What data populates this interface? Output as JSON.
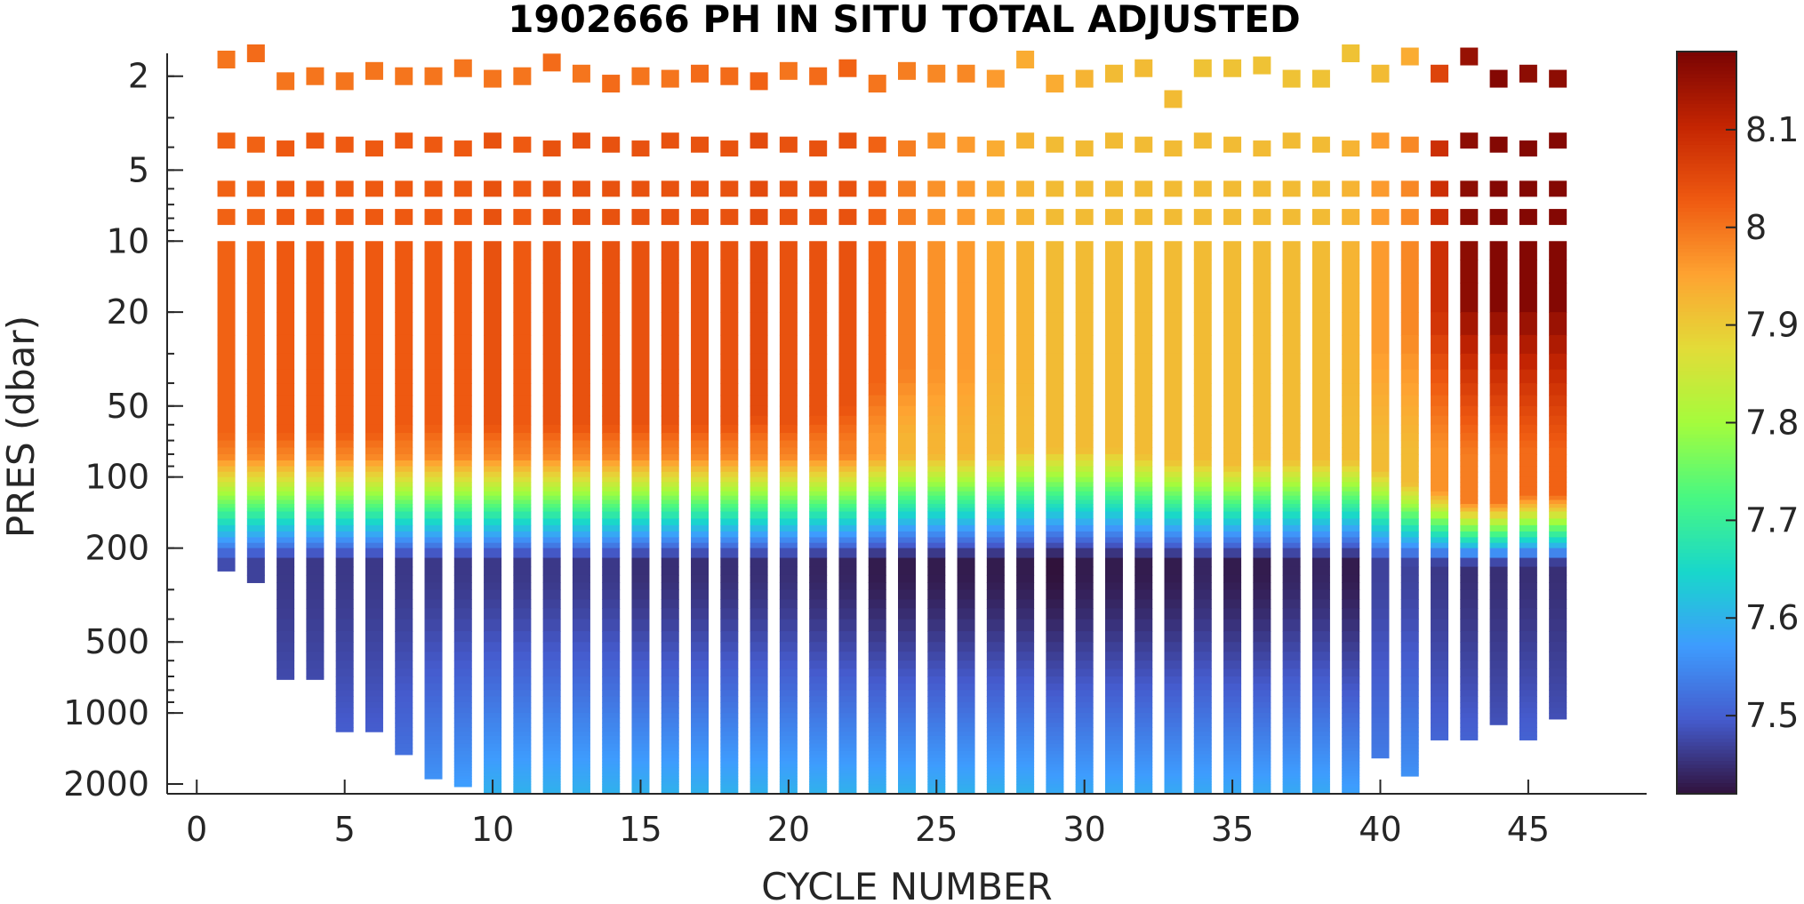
{
  "chart_data": {
    "type": "heatmap",
    "title": "1902666  PH IN SITU TOTAL ADJUSTED",
    "xlabel": "CYCLE NUMBER",
    "ylabel": "PRES (dbar)",
    "xlim": [
      -1,
      49
    ],
    "xticks": [
      0,
      5,
      10,
      15,
      20,
      25,
      30,
      35,
      40,
      45
    ],
    "ylim": [
      2200,
      1.6
    ],
    "yscale": "log",
    "yreversed": true,
    "yticks": [
      2,
      5,
      10,
      20,
      50,
      100,
      200,
      500,
      1000,
      2000
    ],
    "colorbar": {
      "ticks": [
        7.5,
        7.6,
        7.7,
        7.8,
        7.9,
        8,
        8.1
      ],
      "tick_labels": [
        "7.5",
        "7.6",
        "7.7",
        "7.8",
        "7.9",
        "8",
        "8.1"
      ],
      "range": [
        7.42,
        8.18
      ],
      "colormap": "turbo"
    },
    "cycles": [
      1,
      2,
      3,
      4,
      5,
      6,
      7,
      8,
      9,
      10,
      11,
      12,
      13,
      14,
      15,
      16,
      17,
      18,
      19,
      20,
      21,
      22,
      23,
      24,
      25,
      26,
      27,
      28,
      29,
      30,
      31,
      32,
      33,
      34,
      35,
      36,
      37,
      38,
      39,
      40,
      41,
      42,
      43,
      44,
      45,
      46
    ],
    "max_pressure": [
      250,
      280,
      720,
      720,
      1200,
      1200,
      1500,
      1900,
      2050,
      2200,
      2200,
      2200,
      2200,
      2200,
      2200,
      2200,
      2200,
      2200,
      2200,
      2200,
      2200,
      2200,
      2200,
      2200,
      2200,
      2200,
      2200,
      2200,
      2200,
      2200,
      2200,
      2200,
      2200,
      2200,
      2200,
      2200,
      2200,
      2200,
      2200,
      1550,
      1850,
      1300,
      1300,
      1120,
      1300,
      1060
    ],
    "surface_ph": [
      8.0,
      8.01,
      8.0,
      8.0,
      8.0,
      8.0,
      8.0,
      8.0,
      8.0,
      8.0,
      8.0,
      8.01,
      8.0,
      8.01,
      8.0,
      8.0,
      8.01,
      8.01,
      8.02,
      8.0,
      8.01,
      8.02,
      8.0,
      7.99,
      7.98,
      7.98,
      7.96,
      7.94,
      7.94,
      7.93,
      7.92,
      7.92,
      7.92,
      7.91,
      7.91,
      7.91,
      7.91,
      7.91,
      7.91,
      7.92,
      7.94,
      8.06,
      8.15,
      8.17,
      8.16,
      8.16
    ],
    "surface_pres": [
      1.7,
      1.6,
      2.1,
      2.0,
      2.1,
      1.9,
      2.0,
      2.0,
      1.85,
      2.05,
      2.0,
      1.75,
      1.95,
      2.15,
      2.0,
      2.05,
      1.95,
      2.0,
      2.1,
      1.9,
      2.0,
      1.85,
      2.15,
      1.9,
      1.95,
      1.95,
      2.05,
      1.7,
      2.15,
      2.05,
      1.95,
      1.85,
      2.5,
      1.85,
      1.85,
      1.8,
      2.05,
      2.05,
      1.6,
      1.95,
      1.65,
      1.95,
      1.65,
      2.05,
      1.95,
      2.05
    ],
    "mixed_ph": [
      8.02,
      8.02,
      8.03,
      8.03,
      8.03,
      8.03,
      8.03,
      8.03,
      8.03,
      8.04,
      8.03,
      8.04,
      8.04,
      8.04,
      8.04,
      8.04,
      8.04,
      8.04,
      8.05,
      8.04,
      8.04,
      8.04,
      8.02,
      7.99,
      7.97,
      7.96,
      7.94,
      7.93,
      7.92,
      7.92,
      7.92,
      7.92,
      7.92,
      7.92,
      7.92,
      7.92,
      7.92,
      7.92,
      7.93,
      7.96,
      7.98,
      8.09,
      8.16,
      8.17,
      8.17,
      8.17
    ],
    "mixed_depth": [
      65,
      65,
      65,
      65,
      65,
      65,
      60,
      60,
      60,
      60,
      60,
      60,
      60,
      60,
      60,
      60,
      60,
      60,
      55,
      60,
      55,
      50,
      40,
      35,
      35,
      35,
      30,
      30,
      30,
      30,
      30,
      30,
      28,
      28,
      28,
      28,
      28,
      28,
      28,
      28,
      25,
      20,
      18,
      18,
      18,
      18
    ],
    "mixed_ph_deep": [
      7.99,
      7.99,
      7.99,
      7.99,
      7.99,
      7.99,
      7.99,
      7.99,
      7.99,
      7.99,
      7.99,
      7.99,
      7.99,
      7.99,
      7.99,
      7.99,
      7.99,
      7.99,
      7.99,
      7.99,
      7.99,
      7.99,
      7.96,
      7.93,
      7.93,
      7.93,
      7.92,
      7.92,
      7.92,
      7.92,
      7.92,
      7.92,
      7.92,
      7.92,
      7.92,
      7.92,
      7.92,
      7.92,
      7.92,
      7.92,
      7.92,
      7.97,
      7.99,
      8.0,
      8.01,
      8.02
    ],
    "transition_pres": [
      95,
      95,
      95,
      95,
      95,
      95,
      95,
      95,
      95,
      95,
      95,
      95,
      95,
      95,
      95,
      95,
      95,
      95,
      95,
      95,
      95,
      95,
      95,
      95,
      95,
      95,
      95,
      90,
      90,
      90,
      90,
      95,
      100,
      100,
      105,
      100,
      100,
      100,
      100,
      110,
      125,
      135,
      150,
      150,
      140,
      140
    ],
    "min_ph": [
      7.48,
      7.47,
      7.46,
      7.46,
      7.46,
      7.46,
      7.46,
      7.46,
      7.46,
      7.46,
      7.46,
      7.46,
      7.46,
      7.46,
      7.45,
      7.45,
      7.45,
      7.45,
      7.45,
      7.45,
      7.44,
      7.44,
      7.43,
      7.43,
      7.43,
      7.43,
      7.43,
      7.43,
      7.42,
      7.43,
      7.43,
      7.43,
      7.43,
      7.44,
      7.43,
      7.43,
      7.44,
      7.44,
      7.43,
      7.47,
      7.47,
      7.46,
      7.45,
      7.45,
      7.45,
      7.45
    ],
    "bottom_ph": [
      7.48,
      7.48,
      7.51,
      7.51,
      7.52,
      7.52,
      7.54,
      7.57,
      7.58,
      7.6,
      7.6,
      7.6,
      7.6,
      7.6,
      7.6,
      7.6,
      7.6,
      7.6,
      7.6,
      7.6,
      7.6,
      7.6,
      7.6,
      7.6,
      7.6,
      7.6,
      7.6,
      7.6,
      7.59,
      7.59,
      7.59,
      7.59,
      7.59,
      7.59,
      7.59,
      7.59,
      7.59,
      7.59,
      7.58,
      7.55,
      7.57,
      7.53,
      7.53,
      7.51,
      7.53,
      7.51
    ],
    "sample_pres": [
      2,
      4,
      6,
      8,
      10,
      12,
      15,
      20,
      25,
      30,
      35,
      40,
      45,
      50,
      55,
      60,
      65,
      70,
      75,
      80,
      85,
      90,
      95,
      100,
      105,
      110,
      115,
      120,
      125,
      130,
      135,
      140,
      150,
      160,
      170,
      180,
      190,
      200,
      220,
      240,
      260,
      280,
      300,
      330,
      360,
      400,
      450,
      500,
      550,
      600,
      650,
      700,
      750,
      800,
      850,
      900,
      950,
      1000,
      1050,
      1100,
      1150,
      1200,
      1250,
      1300,
      1350,
      1400,
      1450,
      1500,
      1550,
      1600,
      1650,
      1700,
      1750,
      1800,
      1850,
      1900,
      1950,
      2000,
      2050,
      2100,
      2150,
      2200
    ]
  }
}
